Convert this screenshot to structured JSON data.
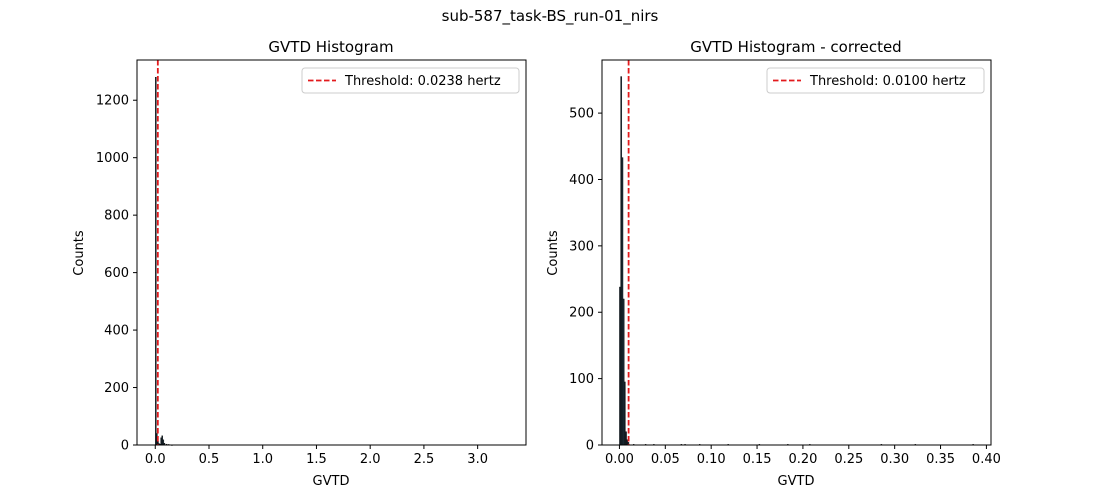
{
  "figure": {
    "suptitle": "sub-587_task-BS_run-01_nirs",
    "background": "#ffffff"
  },
  "chart_data": [
    {
      "type": "bar",
      "subtype": "histogram",
      "title": "GVTD Histogram",
      "xlabel": "GVTD",
      "ylabel": "Counts",
      "xlim": [
        -0.17,
        3.45
      ],
      "ylim": [
        0,
        1340
      ],
      "xticks": [
        0.0,
        0.5,
        1.0,
        1.5,
        2.0,
        2.5,
        3.0
      ],
      "xtick_labels": [
        "0.0",
        "0.5",
        "1.0",
        "1.5",
        "2.0",
        "2.5",
        "3.0"
      ],
      "yticks": [
        0,
        200,
        400,
        600,
        800,
        1000,
        1200
      ],
      "ytick_labels": [
        "0",
        "200",
        "400",
        "600",
        "800",
        "1000",
        "1200"
      ],
      "bar_color": "#1f2f3a",
      "edge_color": "#000000",
      "bins": [
        {
          "x0": 0.0,
          "x1": 0.01,
          "count": 1280
        },
        {
          "x0": 0.01,
          "x1": 0.02,
          "count": 40
        },
        {
          "x0": 0.02,
          "x1": 0.03,
          "count": 12
        },
        {
          "x0": 0.03,
          "x1": 0.04,
          "count": 5
        },
        {
          "x0": 0.04,
          "x1": 0.05,
          "count": 3
        },
        {
          "x0": 0.05,
          "x1": 0.06,
          "count": 25
        },
        {
          "x0": 0.06,
          "x1": 0.07,
          "count": 32
        },
        {
          "x0": 0.07,
          "x1": 0.08,
          "count": 18
        },
        {
          "x0": 0.08,
          "x1": 0.09,
          "count": 6
        },
        {
          "x0": 0.1,
          "x1": 0.11,
          "count": 3
        },
        {
          "x0": 0.12,
          "x1": 0.13,
          "count": 2
        },
        {
          "x0": 0.15,
          "x1": 0.16,
          "count": 1
        }
      ],
      "threshold": {
        "value": 0.0238,
        "label": "Threshold: 0.0238 hertz",
        "color": "#e31a1c",
        "style": "dashed"
      },
      "grid": false,
      "legend": "top-right"
    },
    {
      "type": "bar",
      "subtype": "histogram",
      "title": "GVTD Histogram - corrected",
      "xlabel": "GVTD",
      "ylabel": "Counts",
      "xlim": [
        -0.019,
        0.405
      ],
      "ylim": [
        0,
        580
      ],
      "xticks": [
        0.0,
        0.05,
        0.1,
        0.15,
        0.2,
        0.25,
        0.3,
        0.35,
        0.4
      ],
      "xtick_labels": [
        "0.00",
        "0.05",
        "0.10",
        "0.15",
        "0.20",
        "0.25",
        "0.30",
        "0.35",
        "0.40"
      ],
      "yticks": [
        0,
        100,
        200,
        300,
        400,
        500
      ],
      "ytick_labels": [
        "0",
        "100",
        "200",
        "300",
        "400",
        "500"
      ],
      "bar_color": "#1f2f3a",
      "edge_color": "#000000",
      "bins": [
        {
          "x0": 0.0,
          "x1": 0.0013,
          "count": 238
        },
        {
          "x0": 0.0013,
          "x1": 0.0026,
          "count": 555
        },
        {
          "x0": 0.0026,
          "x1": 0.0039,
          "count": 433
        },
        {
          "x0": 0.0039,
          "x1": 0.0052,
          "count": 220
        },
        {
          "x0": 0.0052,
          "x1": 0.0065,
          "count": 95
        },
        {
          "x0": 0.0065,
          "x1": 0.0078,
          "count": 20
        },
        {
          "x0": 0.0078,
          "x1": 0.0091,
          "count": 8
        },
        {
          "x0": 0.0091,
          "x1": 0.0104,
          "count": 4
        },
        {
          "x0": 0.015,
          "x1": 0.016,
          "count": 1
        },
        {
          "x0": 0.028,
          "x1": 0.029,
          "count": 1
        },
        {
          "x0": 0.037,
          "x1": 0.038,
          "count": 1
        },
        {
          "x0": 0.067,
          "x1": 0.068,
          "count": 1
        },
        {
          "x0": 0.071,
          "x1": 0.072,
          "count": 1
        },
        {
          "x0": 0.087,
          "x1": 0.088,
          "count": 1
        },
        {
          "x0": 0.118,
          "x1": 0.119,
          "count": 1
        },
        {
          "x0": 0.152,
          "x1": 0.153,
          "count": 1
        },
        {
          "x0": 0.183,
          "x1": 0.184,
          "count": 1
        },
        {
          "x0": 0.207,
          "x1": 0.208,
          "count": 1
        },
        {
          "x0": 0.285,
          "x1": 0.286,
          "count": 1
        },
        {
          "x0": 0.322,
          "x1": 0.323,
          "count": 1
        },
        {
          "x0": 0.385,
          "x1": 0.386,
          "count": 1
        }
      ],
      "threshold": {
        "value": 0.01,
        "label": "Threshold: 0.0100 hertz",
        "color": "#e31a1c",
        "style": "dashed"
      },
      "grid": false,
      "legend": "top-right"
    }
  ]
}
